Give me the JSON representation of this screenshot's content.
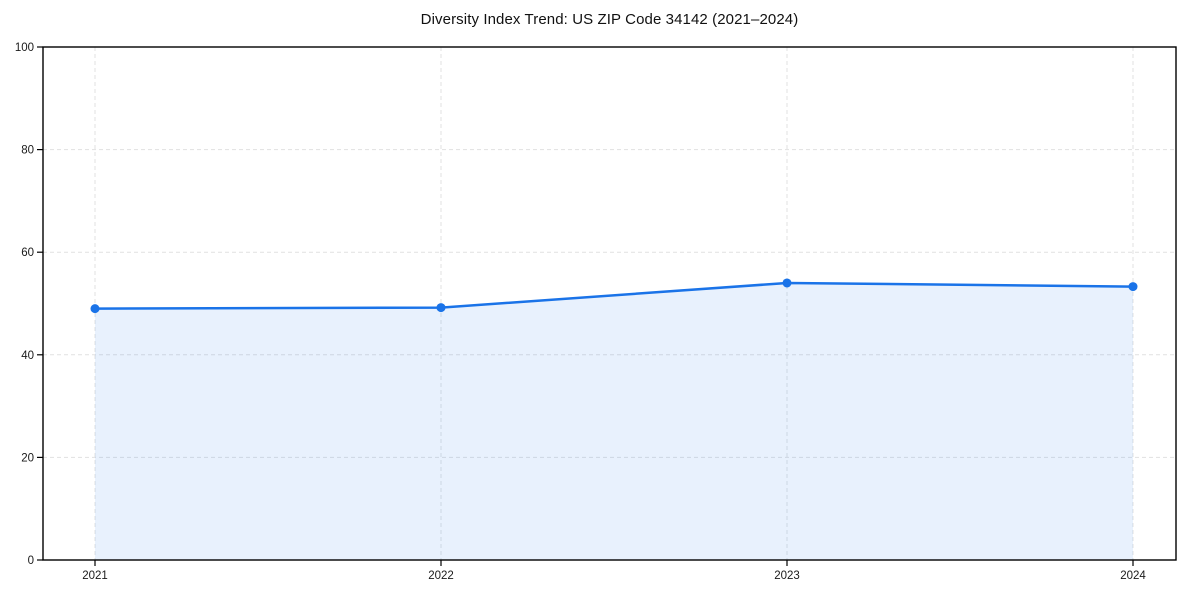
{
  "chart_data": {
    "type": "area",
    "title": "Diversity Index Trend: US ZIP Code 34142 (2021–2024)",
    "categories": [
      "2021",
      "2022",
      "2023",
      "2024"
    ],
    "series": [
      {
        "name": "Diversity Index",
        "values": [
          49.0,
          49.2,
          54.0,
          53.3
        ]
      }
    ],
    "xlabel": "",
    "ylabel": "",
    "ylim": [
      0,
      100
    ],
    "yticks": [
      0,
      20,
      40,
      60,
      80,
      100
    ],
    "grid": true,
    "grid_style": "dashed",
    "legend_position": "none",
    "line_color": "#1a73e8",
    "marker": "circle",
    "fill_color": "#1a73e8",
    "fill_opacity": 0.1,
    "grid_color": "#e1e1e1",
    "spine_color": "#000000",
    "background": "#ffffff"
  }
}
